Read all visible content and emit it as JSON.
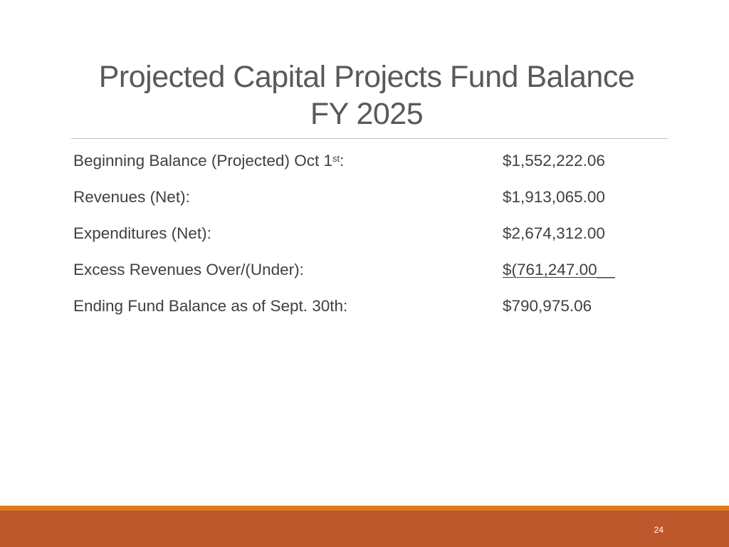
{
  "slide": {
    "title_line1": "Projected Capital Projects Fund Balance",
    "title_line2": "FY 2025",
    "page_number": "24"
  },
  "rows": [
    {
      "label": "Beginning Balance (Projected) Oct 1",
      "label_sup": "st",
      "label_suffix": ":",
      "value": "$1,552,222.06"
    },
    {
      "label": "Revenues (Net):",
      "value": "$1,913,065.00"
    },
    {
      "label": "Expenditures (Net):",
      "value": "$2,674,312.00"
    },
    {
      "label": "Excess Revenues Over/(Under):",
      "value": "$(761,247.00__"
    },
    {
      "label": "Ending Fund Balance as of Sept. 30th:",
      "value": "$790,975.06"
    }
  ],
  "colors": {
    "title": "#595959",
    "text": "#404040",
    "divider": "#bfbfbf",
    "accent_thin": "#e07b1a",
    "accent_thick": "#bd582c"
  }
}
